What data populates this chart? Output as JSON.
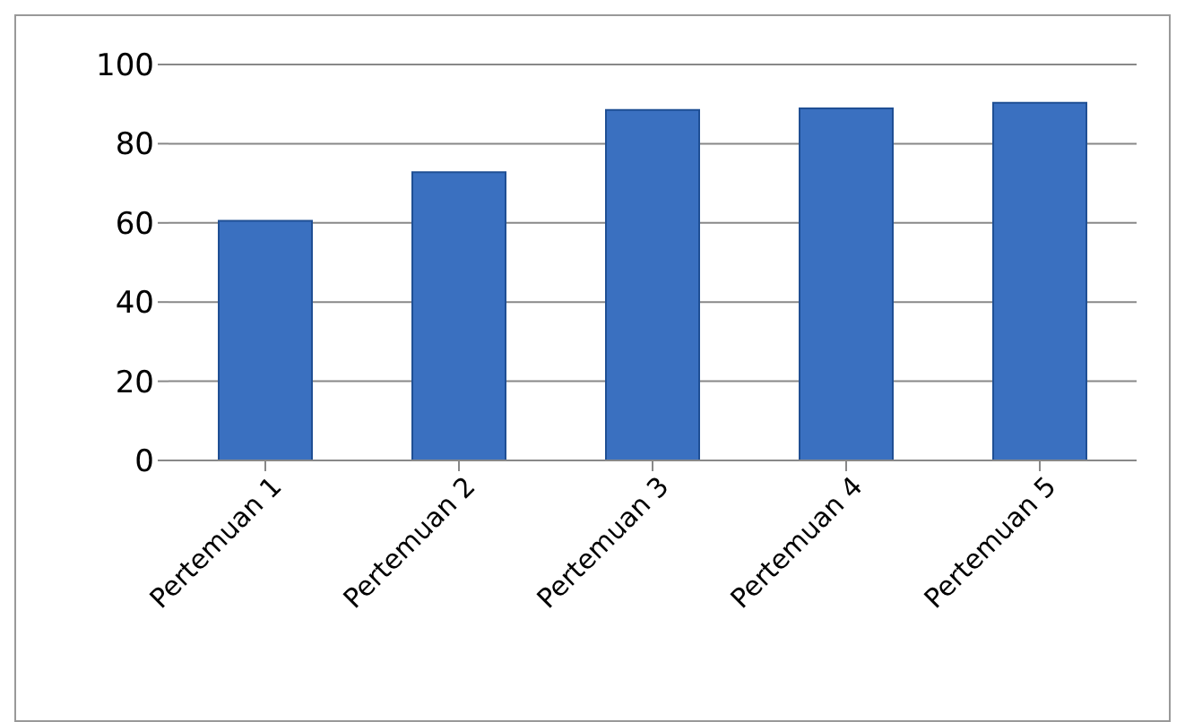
{
  "chart_data": {
    "type": "bar",
    "categories": [
      "Pertemuan 1",
      "Pertemuan 2",
      "Pertemuan 3",
      "Pertemuan 4",
      "Pertemuan 5"
    ],
    "values": [
      60.5,
      72.8,
      88.5,
      88.9,
      90.3
    ],
    "color": "#3a70c0",
    "ylim": [
      0,
      100
    ],
    "yticks": [
      0,
      20,
      40,
      60,
      80,
      100
    ],
    "grid": "y",
    "legend": false
  }
}
